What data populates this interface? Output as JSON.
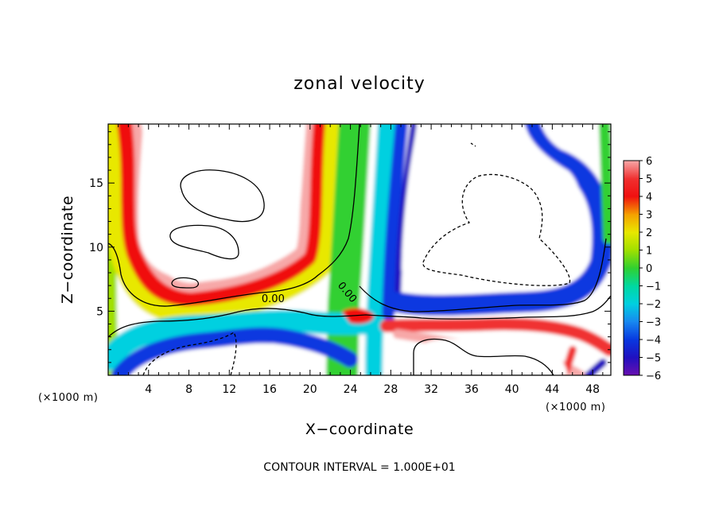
{
  "chart_data": {
    "type": "heatmap",
    "title": "zonal velocity",
    "xlabel": "X−coordinate",
    "ylabel": "Z−coordinate",
    "x_unit": "(×1000 m)",
    "x_ticks": [
      4,
      8,
      12,
      16,
      20,
      24,
      28,
      32,
      36,
      40,
      44,
      48
    ],
    "y_ticks": [
      5,
      10,
      15
    ],
    "xlim": [
      0,
      49.8
    ],
    "ylim": [
      0,
      19.6
    ],
    "colorbar": {
      "ticks": [
        6,
        5,
        4,
        3,
        2,
        1,
        0,
        -1,
        -2,
        -3,
        -4,
        -5,
        -6
      ],
      "labels": [
        "6",
        "5",
        "4",
        "3",
        "2",
        "1",
        "0",
        "−1",
        "−2",
        "−3",
        "−4",
        "−5",
        "−6"
      ],
      "range": [
        -6,
        6
      ]
    },
    "contour_labels": [
      {
        "text": "0.00",
        "x": 15.2,
        "z": 5.7
      },
      {
        "text": "0.00",
        "x": 22.7,
        "z": 7.0
      }
    ],
    "footnote": "CONTOUR INTERVAL = 1.000E+01",
    "colors": {
      "6": "#f7a8a8",
      "5": "#f03030",
      "4": "#f01010",
      "3": "#f5a000",
      "2": "#e8e800",
      "1": "#a0e000",
      "0": "#30d030",
      "-1": "#00d8a0",
      "-2": "#00d0e0",
      "-3": "#1888f0",
      "-4": "#0838e0",
      "-5": "#2010c0",
      "-6": "#6a10b0"
    }
  }
}
